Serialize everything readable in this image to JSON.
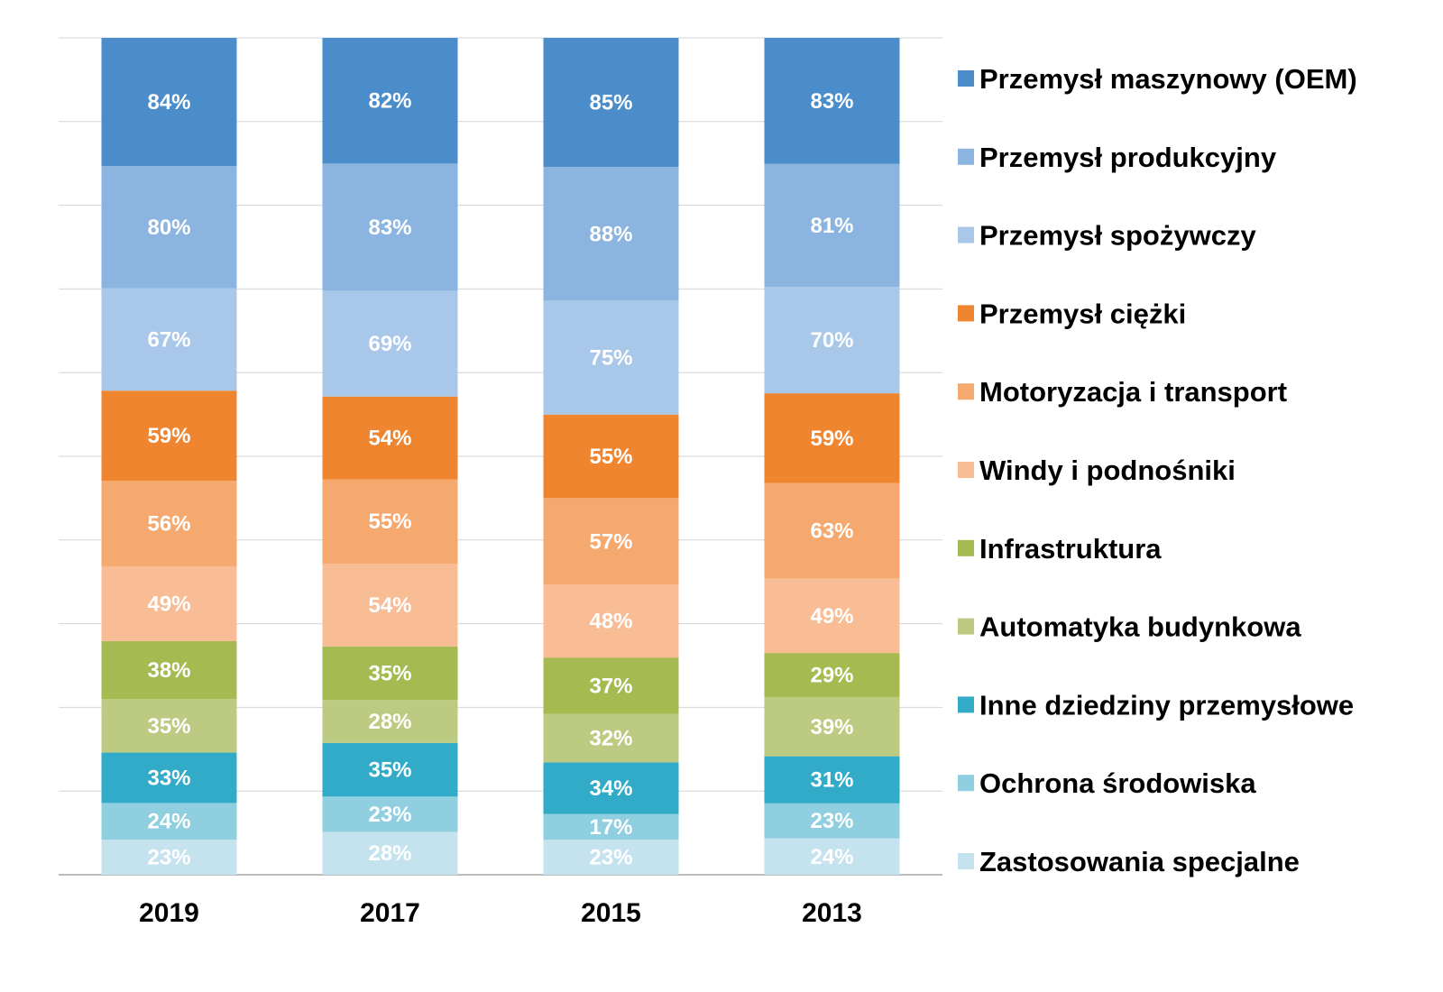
{
  "chart_data": {
    "type": "bar",
    "stacked": true,
    "categories": [
      "2019",
      "2017",
      "2015",
      "2013"
    ],
    "series": [
      {
        "name": "Zastosowania specjalne",
        "color": "#c5e3ee",
        "values": [
          23,
          28,
          23,
          24
        ]
      },
      {
        "name": "Ochrona środowiska",
        "color": "#8fcfdf",
        "values": [
          24,
          23,
          17,
          23
        ]
      },
      {
        "name": "Inne dziedziny przemysłowe",
        "color": "#32abc9",
        "values": [
          33,
          35,
          34,
          31
        ]
      },
      {
        "name": "Automatyka budynkowa",
        "color": "#bccb81",
        "values": [
          35,
          28,
          32,
          39
        ]
      },
      {
        "name": "Infrastruktura",
        "color": "#a6ba52",
        "values": [
          38,
          35,
          37,
          29
        ]
      },
      {
        "name": "Windy i podnośniki",
        "color": "#f8bd94",
        "values": [
          49,
          54,
          48,
          49
        ]
      },
      {
        "name": "Motoryzacja i transport",
        "color": "#f5a96f",
        "values": [
          56,
          55,
          57,
          63
        ]
      },
      {
        "name": "Przemysł ciężki",
        "color": "#ef852f",
        "values": [
          59,
          54,
          55,
          59
        ]
      },
      {
        "name": "Przemysł spożywczy",
        "color": "#a9c8e9",
        "values": [
          67,
          69,
          75,
          70
        ]
      },
      {
        "name": "Przemysł produkcyjny",
        "color": "#8bb5e0",
        "values": [
          80,
          83,
          88,
          81
        ]
      },
      {
        "name": "Przemysł maszynowy (OEM)",
        "color": "#4a8dca",
        "values": [
          84,
          82,
          85,
          83
        ]
      }
    ],
    "value_suffix": "%",
    "legend_position": "right",
    "grid": true
  }
}
